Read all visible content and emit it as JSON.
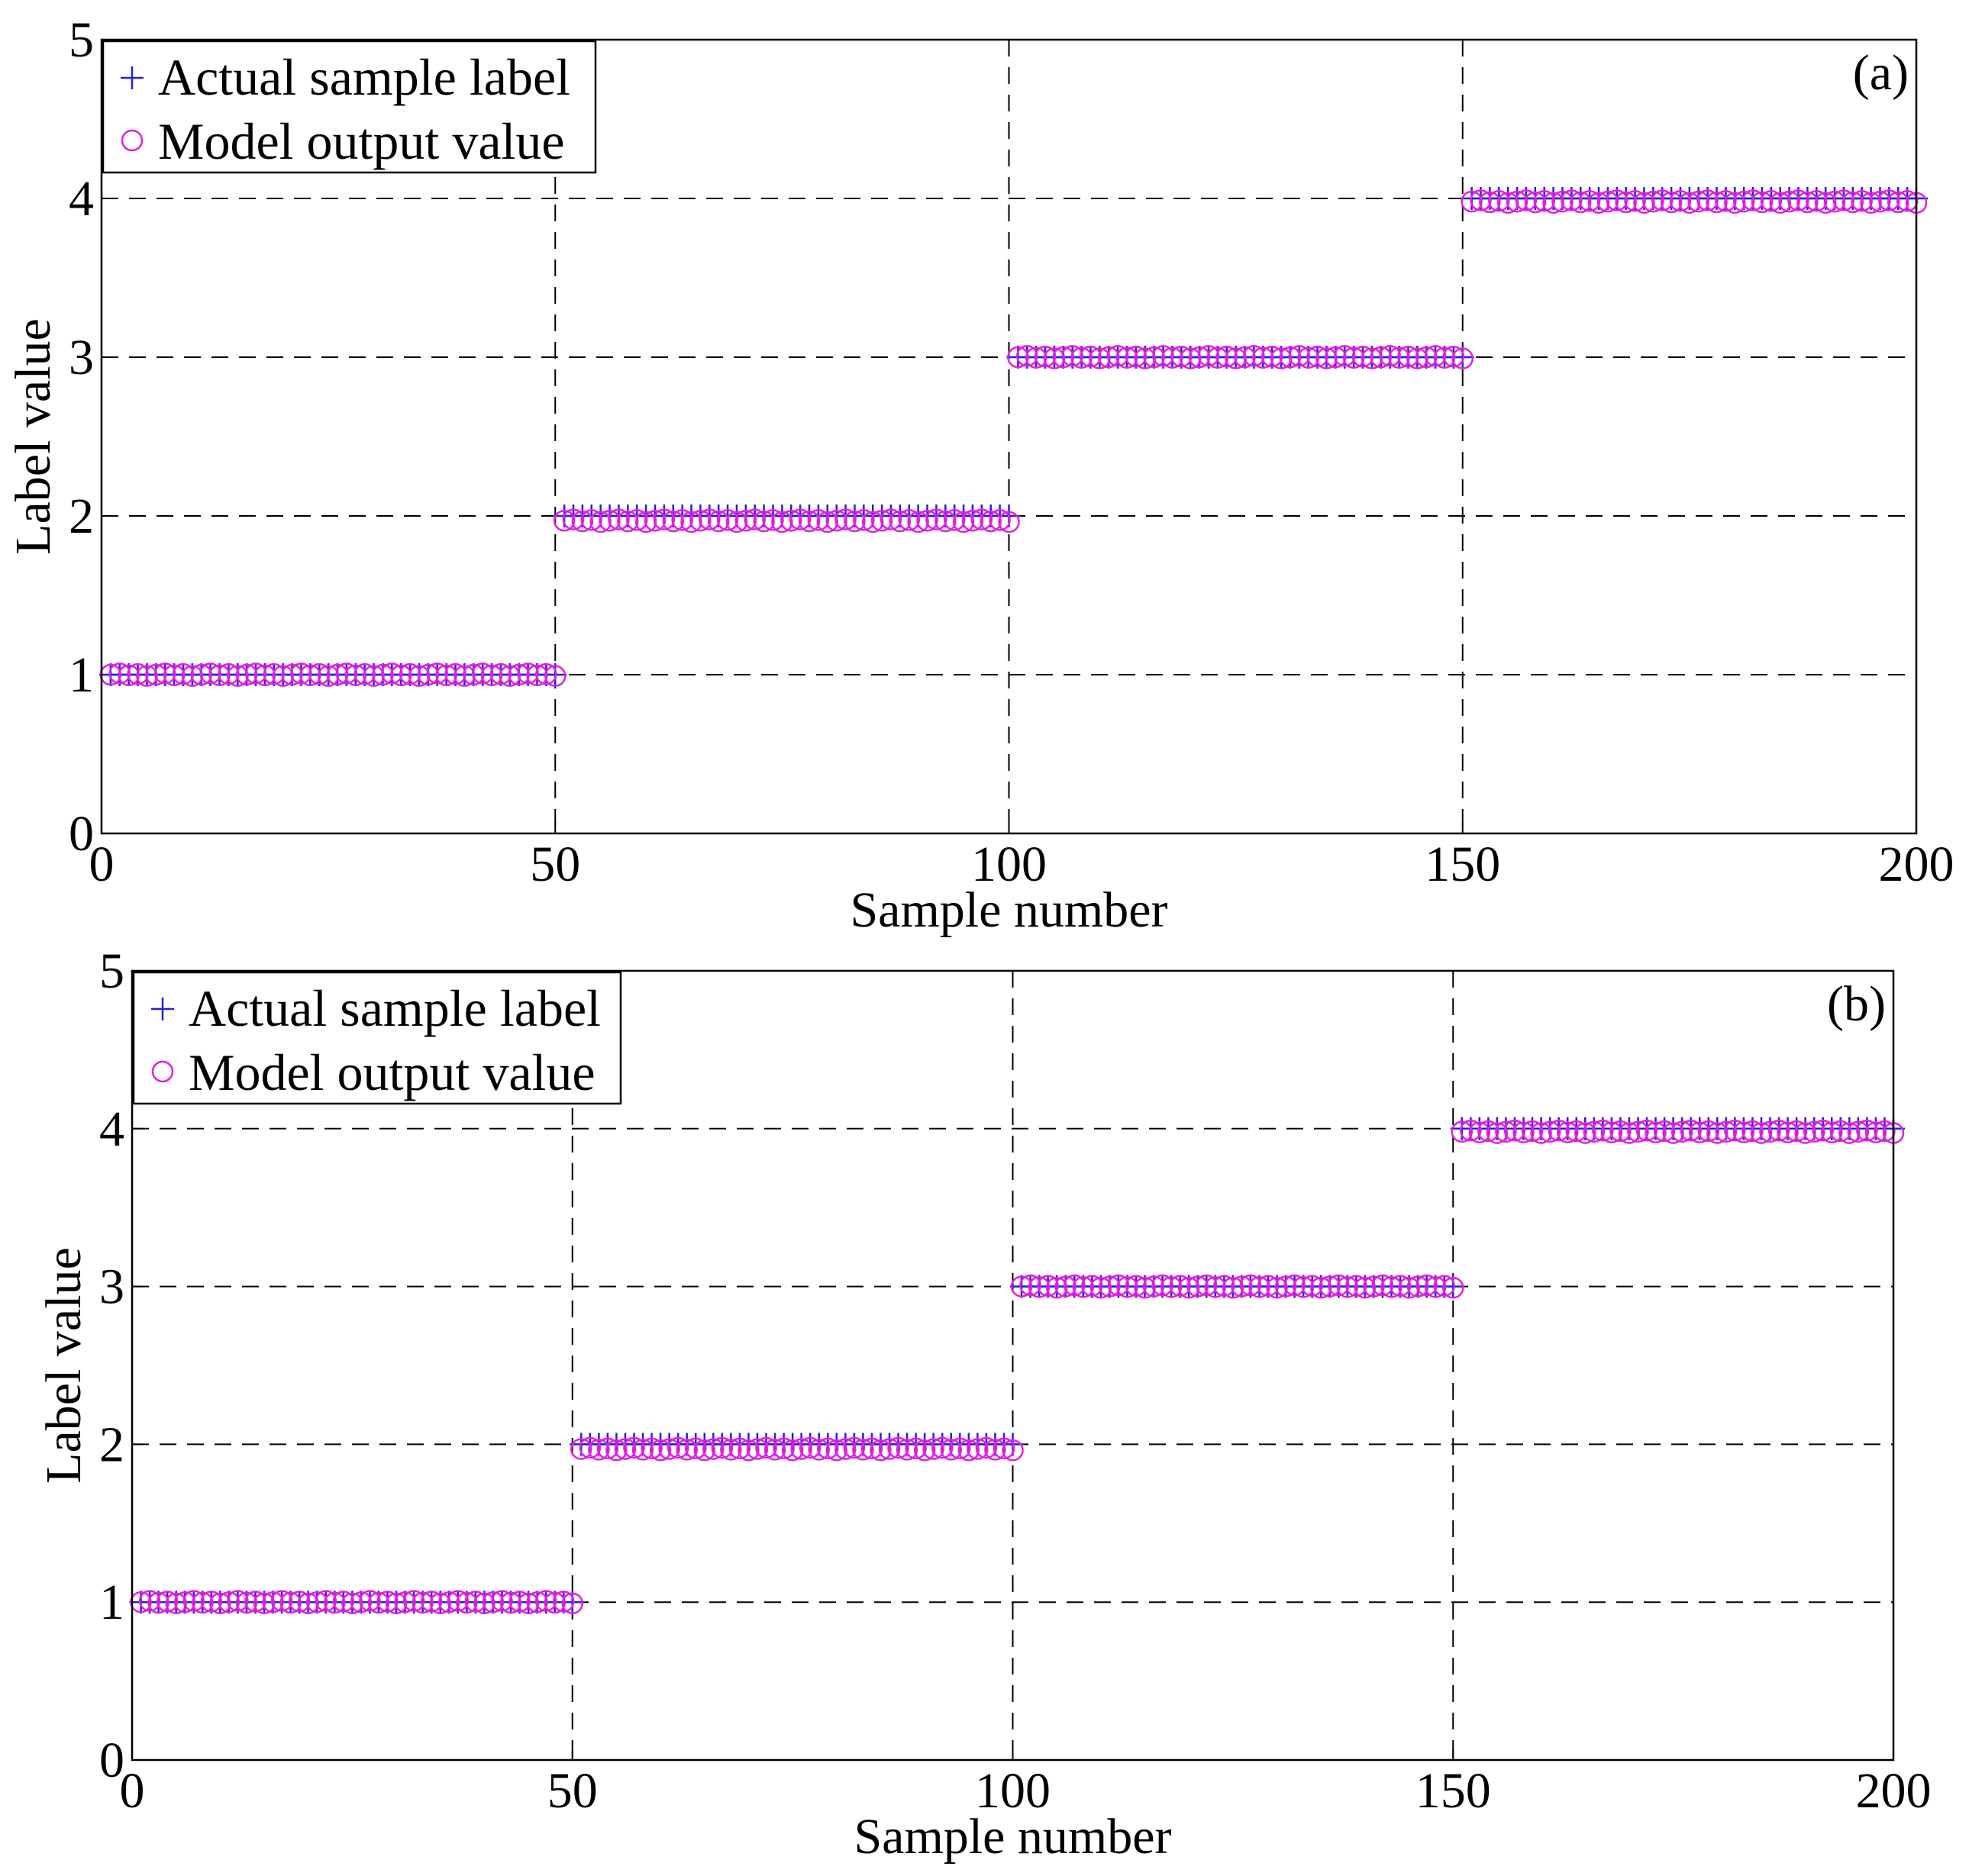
{
  "colors": {
    "actual": "#2020e0",
    "model": "#e020e0",
    "axes": "#000000",
    "background": "#ffffff"
  },
  "chart_data": [
    {
      "type": "scatter",
      "panel_label": "(a)",
      "title": "",
      "xlabel": "Sample number",
      "ylabel": "Label value",
      "xlim": [
        0,
        200
      ],
      "ylim": [
        0,
        5
      ],
      "xticks": [
        0,
        50,
        100,
        150,
        200
      ],
      "yticks": [
        0,
        1,
        2,
        3,
        4,
        5
      ],
      "grid": "dashed at major ticks",
      "legend_position": "top-left",
      "series": [
        {
          "name": "Actual sample label",
          "marker": "plus",
          "color": "#2020e0",
          "segments": [
            {
              "x_start": 1,
              "x_end": 50,
              "value": 1
            },
            {
              "x_start": 51,
              "x_end": 100,
              "value": 2
            },
            {
              "x_start": 101,
              "x_end": 150,
              "value": 3
            },
            {
              "x_start": 151,
              "x_end": 200,
              "value": 4
            }
          ]
        },
        {
          "name": "Model output value",
          "marker": "circle",
          "color": "#e020e0",
          "segments": [
            {
              "x_start": 1,
              "x_end": 50,
              "value": 1.0
            },
            {
              "x_start": 51,
              "x_end": 100,
              "value": 1.97
            },
            {
              "x_start": 101,
              "x_end": 150,
              "value": 3.0
            },
            {
              "x_start": 151,
              "x_end": 200,
              "value": 3.98
            }
          ]
        }
      ]
    },
    {
      "type": "scatter",
      "panel_label": "(b)",
      "title": "",
      "xlabel": "Sample number",
      "ylabel": "Label value",
      "xlim": [
        0,
        200
      ],
      "ylim": [
        0,
        5
      ],
      "xticks": [
        0,
        50,
        100,
        150,
        200
      ],
      "yticks": [
        0,
        1,
        2,
        3,
        4,
        5
      ],
      "grid": "dashed at major ticks",
      "legend_position": "top-left",
      "series": [
        {
          "name": "Actual sample label",
          "marker": "plus",
          "color": "#2020e0",
          "segments": [
            {
              "x_start": 1,
              "x_end": 50,
              "value": 1
            },
            {
              "x_start": 51,
              "x_end": 100,
              "value": 2
            },
            {
              "x_start": 101,
              "x_end": 150,
              "value": 3
            },
            {
              "x_start": 151,
              "x_end": 200,
              "value": 4
            }
          ]
        },
        {
          "name": "Model output value",
          "marker": "circle",
          "color": "#e020e0",
          "segments": [
            {
              "x_start": 1,
              "x_end": 50,
              "value": 1.0
            },
            {
              "x_start": 51,
              "x_end": 100,
              "value": 1.97
            },
            {
              "x_start": 101,
              "x_end": 150,
              "value": 3.0
            },
            {
              "x_start": 151,
              "x_end": 200,
              "value": 3.98
            }
          ]
        }
      ]
    }
  ]
}
